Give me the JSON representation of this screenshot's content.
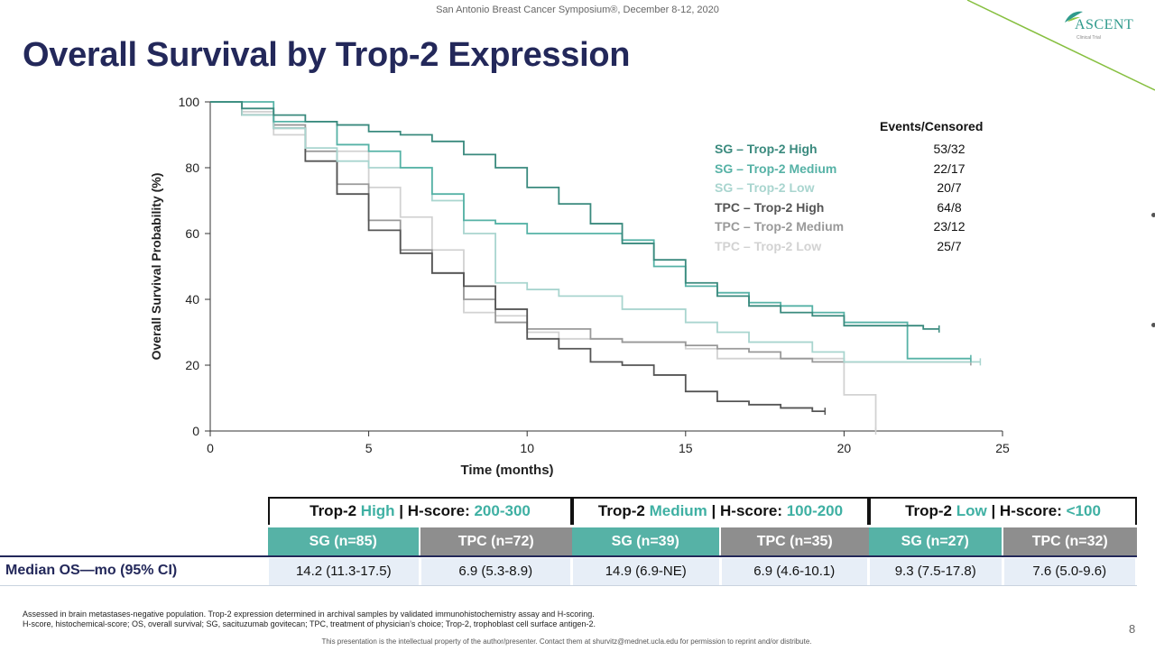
{
  "header": {
    "conference": "San Antonio Breast Cancer Symposium®, December 8-12, 2020",
    "title": "Overall Survival by Trop-2 Expression",
    "logo_text": "ASCENT",
    "logo_sub": "Clinical Trial"
  },
  "chart_data": {
    "type": "line",
    "title": "",
    "xlabel": "Time (months)",
    "ylabel": "Overall Survival Probability (%)",
    "xlim": [
      0,
      25
    ],
    "ylim": [
      0,
      100
    ],
    "xticks": [
      0,
      5,
      10,
      15,
      20,
      25
    ],
    "yticks": [
      0,
      20,
      40,
      60,
      80,
      100
    ],
    "grid": false,
    "legend_title": "Events/Censored",
    "legend_position": "top-right",
    "series": [
      {
        "name": "SG – Trop-2 High",
        "stats": "53/32",
        "color": "#3a8a7e",
        "x": [
          0,
          1,
          2,
          3,
          4,
          5,
          6,
          7,
          8,
          9,
          10,
          11,
          12,
          13,
          14,
          15,
          16,
          17,
          18,
          19,
          20,
          21,
          22,
          22.5,
          23
        ],
        "y": [
          100,
          98,
          96,
          94,
          93,
          91,
          90,
          88,
          84,
          80,
          74,
          69,
          63,
          57,
          52,
          45,
          41,
          38,
          36,
          35,
          32,
          32,
          32,
          31,
          31
        ]
      },
      {
        "name": "SG – Trop-2 Medium",
        "stats": "22/17",
        "color": "#56b2a6",
        "x": [
          0,
          1,
          2,
          3,
          4,
          5,
          6,
          7,
          8,
          9,
          10,
          11,
          12,
          13,
          14,
          15,
          16,
          17,
          18,
          19,
          20,
          21,
          22,
          23,
          24
        ],
        "y": [
          100,
          100,
          94,
          94,
          87,
          85,
          80,
          72,
          64,
          63,
          60,
          60,
          60,
          58,
          50,
          44,
          42,
          39,
          38,
          36,
          33,
          33,
          22,
          22,
          22
        ]
      },
      {
        "name": "SG – Trop-2 Low",
        "stats": "20/7",
        "color": "#a9d5cf",
        "x": [
          0,
          1,
          2,
          3,
          4,
          5,
          6,
          7,
          8,
          9,
          10,
          11,
          12,
          13,
          14,
          15,
          16,
          17,
          18,
          19,
          20,
          21,
          22,
          23,
          24.3
        ],
        "y": [
          100,
          96,
          92,
          86,
          82,
          80,
          80,
          70,
          60,
          45,
          43,
          41,
          41,
          37,
          37,
          33,
          30,
          27,
          27,
          24,
          21,
          21,
          21,
          21,
          21
        ]
      },
      {
        "name": "TPC – Trop-2 High",
        "stats": "64/8",
        "color": "#555555",
        "x": [
          0,
          1,
          2,
          3,
          4,
          5,
          6,
          7,
          8,
          9,
          10,
          11,
          12,
          13,
          14,
          15,
          16,
          17,
          18,
          19,
          19.4
        ],
        "y": [
          100,
          96,
          92,
          82,
          72,
          61,
          54,
          48,
          44,
          37,
          28,
          25,
          21,
          20,
          17,
          12,
          9,
          8,
          7,
          6,
          6
        ]
      },
      {
        "name": "TPC – Trop-2 Medium",
        "stats": "23/12",
        "color": "#999999",
        "x": [
          0,
          1,
          2,
          3,
          4,
          5,
          6,
          7,
          8,
          9,
          10,
          11,
          12,
          13,
          14,
          15,
          16,
          17,
          18,
          19,
          20,
          21,
          22,
          23,
          24
        ],
        "y": [
          100,
          96,
          93,
          85,
          75,
          64,
          55,
          48,
          40,
          33,
          31,
          31,
          28,
          27,
          27,
          26,
          25,
          24,
          22,
          21,
          21,
          21,
          21,
          21,
          21
        ]
      },
      {
        "name": "TPC – Trop-2 Low",
        "stats": "25/7",
        "color": "#d2d2d2",
        "x": [
          0,
          1,
          2,
          3,
          4,
          5,
          6,
          7,
          8,
          9,
          10,
          11,
          12,
          13,
          14,
          15,
          16,
          17,
          18,
          19,
          20,
          21,
          21
        ],
        "y": [
          100,
          97,
          90,
          85,
          85,
          74,
          65,
          55,
          36,
          35,
          30,
          28,
          28,
          27,
          27,
          25,
          22,
          22,
          22,
          22,
          11,
          11,
          0
        ]
      }
    ]
  },
  "table": {
    "row_label": "Median OS—mo (95% CI)",
    "groups": [
      {
        "prefix": "Trop-2 ",
        "level": "High",
        "mid": " | H-score: ",
        "range": "200-300",
        "arms": [
          {
            "label": "SG (n=85)",
            "value": "14.2 (11.3-17.5)"
          },
          {
            "label": "TPC (n=72)",
            "value": "6.9 (5.3-8.9)"
          }
        ]
      },
      {
        "prefix": "Trop-2 ",
        "level": "Medium",
        "mid": " | H-score: ",
        "range": "100-200",
        "arms": [
          {
            "label": "SG (n=39)",
            "value": "14.9 (6.9-NE)"
          },
          {
            "label": "TPC (n=35)",
            "value": "6.9 (4.6-10.1)"
          }
        ]
      },
      {
        "prefix": "Trop-2 ",
        "level": "Low",
        "mid": " | H-score: ",
        "range": "<100",
        "arms": [
          {
            "label": "SG (n=27)",
            "value": "9.3 (7.5-17.8)"
          },
          {
            "label": "TPC (n=32)",
            "value": "7.6 (5.0-9.6)"
          }
        ]
      }
    ]
  },
  "footnotes": {
    "line1": "Assessed in brain metastases-negative population. Trop-2 expression determined in archival samples by validated immunohistochemistry assay and H-scoring.",
    "line2": "H-score, histochemical-score; OS, overall survival; SG, sacituzumab govitecan; TPC, treatment of physician’s choice; Trop-2, trophoblast cell surface antigen-2.",
    "ip_notice": "This presentation is the intellectual property of the author/presenter. Contact them at shurvitz@mednet.ucla.edu for permission to reprint and/or distribute.",
    "page_number": "8"
  },
  "colors": {
    "title": "#23285a",
    "sg": "#56b2a6",
    "tpc": "#8e8e8e",
    "accent_text": "#3fb0a3"
  }
}
